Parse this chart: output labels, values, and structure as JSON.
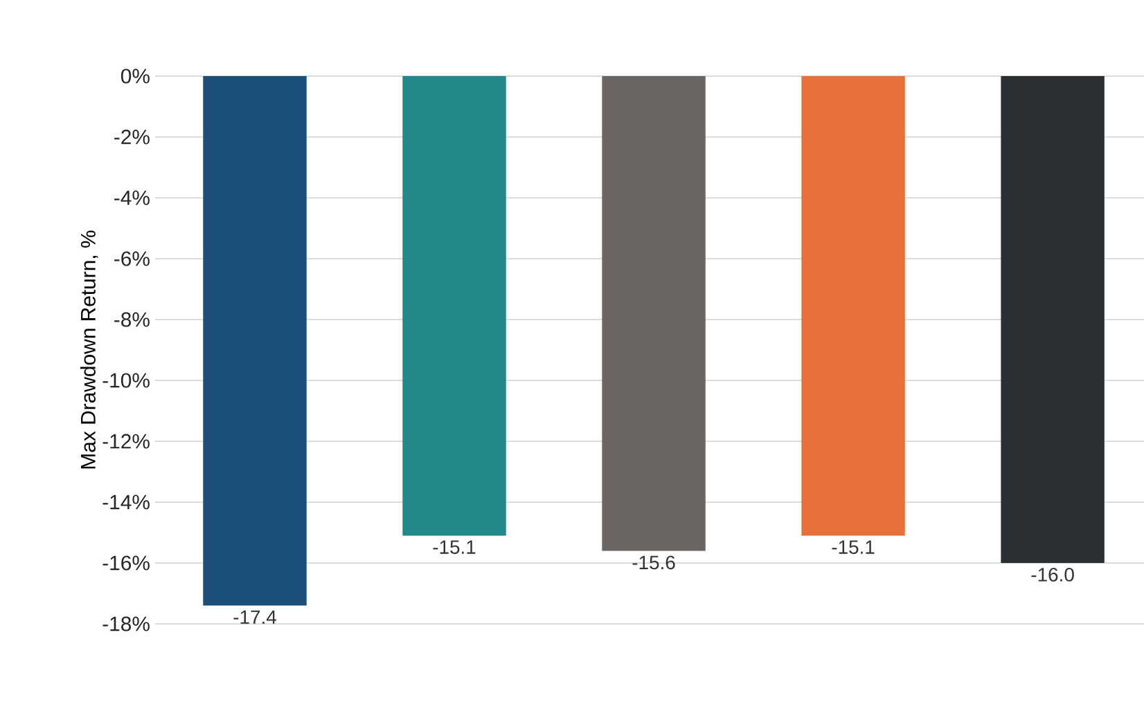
{
  "chart_data": {
    "type": "bar",
    "ylabel": "Max Drawdown Return, %",
    "categories": [
      null,
      null,
      null,
      null,
      null
    ],
    "values": [
      -17.4,
      -15.1,
      -15.6,
      -15.1,
      -16.0
    ],
    "colors": [
      "#1b4f7a",
      "#21898a",
      "#6b6563",
      "#e8703a",
      "#2b3035"
    ],
    "value_labels": [
      "-17.4",
      "-15.1",
      "-15.6",
      "-15.1",
      "-16.0"
    ],
    "ylim": [
      -18,
      0
    ],
    "yticks": [
      {
        "value": 0,
        "label": "0%"
      },
      {
        "value": -2,
        "label": "-2%"
      },
      {
        "value": -4,
        "label": "-4%"
      },
      {
        "value": -6,
        "label": "-6%"
      },
      {
        "value": -8,
        "label": "-8%"
      },
      {
        "value": -10,
        "label": "-10%"
      },
      {
        "value": -12,
        "label": "-12%"
      },
      {
        "value": -14,
        "label": "-14%"
      },
      {
        "value": -16,
        "label": "-16%"
      },
      {
        "value": -18,
        "label": "-18%"
      }
    ],
    "grid": "y"
  }
}
